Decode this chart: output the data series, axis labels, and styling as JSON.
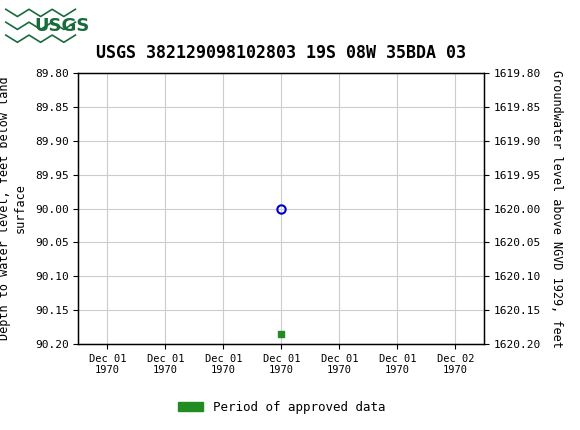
{
  "title": "USGS 382129098102803 19S 08W 35BDA 03",
  "title_fontsize": 12,
  "header_color": "#1a6b3c",
  "left_ylabel": "Depth to water level, feet below land\nsurface",
  "right_ylabel": "Groundwater level above NGVD 1929, feet",
  "ylabel_fontsize": 8.5,
  "ylim_left": [
    89.8,
    90.2
  ],
  "ylim_right": [
    1619.8,
    1620.2
  ],
  "yticks_left": [
    89.8,
    89.85,
    89.9,
    89.95,
    90.0,
    90.05,
    90.1,
    90.15,
    90.2
  ],
  "yticks_right": [
    1619.8,
    1619.85,
    1619.9,
    1619.95,
    1620.0,
    1620.05,
    1620.1,
    1620.15,
    1620.2
  ],
  "data_point_x": 3,
  "data_point_y": 90.0,
  "data_point_color": "#0000cc",
  "green_square_x": 3,
  "green_square_y": 90.185,
  "green_color": "#228B22",
  "xtick_labels": [
    "Dec 01\n1970",
    "Dec 01\n1970",
    "Dec 01\n1970",
    "Dec 01\n1970",
    "Dec 01\n1970",
    "Dec 01\n1970",
    "Dec 02\n1970"
  ],
  "xtick_positions": [
    0,
    1,
    2,
    3,
    4,
    5,
    6
  ],
  "xlim": [
    -0.5,
    6.5
  ],
  "grid_color": "#cccccc",
  "bg_color": "#ffffff",
  "legend_label": "Period of approved data",
  "font_family": "monospace"
}
